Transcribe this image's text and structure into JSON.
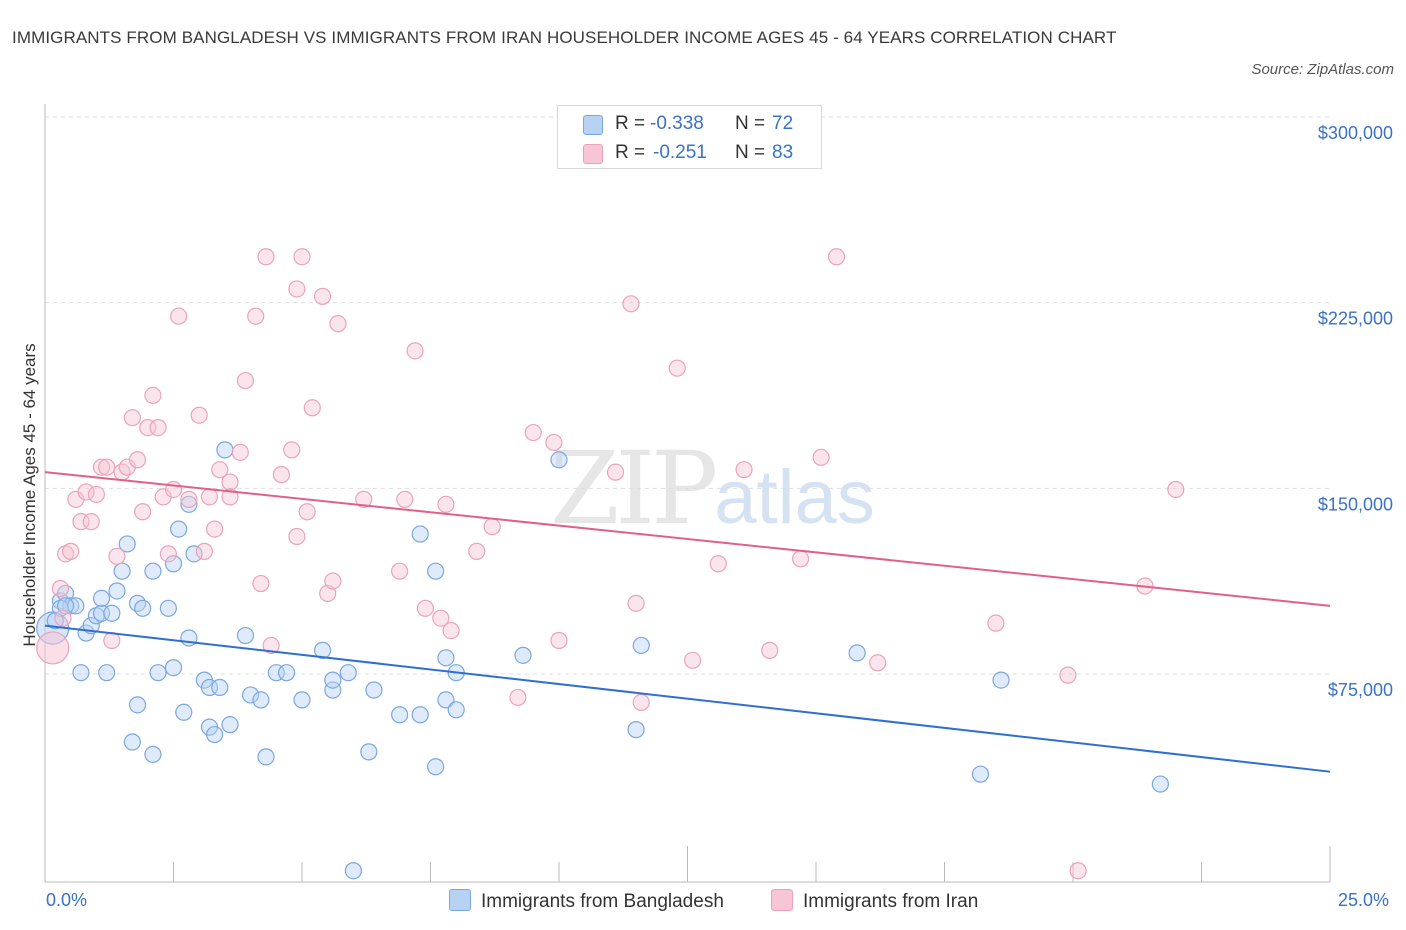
{
  "chart_data": {
    "type": "scatter",
    "title": "IMMIGRANTS FROM BANGLADESH VS IMMIGRANTS FROM IRAN HOUSEHOLDER INCOME AGES 45 - 64 YEARS CORRELATION CHART",
    "source": "Source: ZipAtlas.com",
    "xlabel": "",
    "ylabel": "Householder Income Ages 45 - 64 years",
    "xlim": [
      0,
      25
    ],
    "ylim": [
      0,
      300000
    ],
    "x_tick_labels": [
      "0.0%",
      "25.0%"
    ],
    "y_ticks": [
      75000,
      150000,
      225000,
      300000
    ],
    "y_tick_labels": [
      "$75,000",
      "$150,000",
      "$225,000",
      "$300,000"
    ],
    "grid": true,
    "watermark": {
      "text1": "ZIP",
      "text2": "atlas"
    },
    "legend_stats": [
      {
        "r_label": "R = ",
        "r_value": "-0.338",
        "n_label": "N = ",
        "n_value": "72"
      },
      {
        "r_label": "R = ",
        "r_value": "-0.251",
        "n_label": "N = ",
        "n_value": "83"
      }
    ],
    "series": [
      {
        "name": "Immigrants from Bangladesh",
        "color": "#7aa7e0",
        "fill": "#b8d2f3",
        "line_color": "#2f6fd0",
        "trend": {
          "x": [
            0,
            25
          ],
          "y": [
            101000,
            42000
          ]
        },
        "points": [
          [
            0.15,
            100000
          ],
          [
            0.3,
            111000
          ],
          [
            0.4,
            114000
          ],
          [
            0.5,
            109000
          ],
          [
            0.3,
            108000
          ],
          [
            0.6,
            109000
          ],
          [
            0.8,
            98000
          ],
          [
            0.9,
            101000
          ],
          [
            1.0,
            105000
          ],
          [
            1.1,
            106000
          ],
          [
            1.3,
            106000
          ],
          [
            1.1,
            112000
          ],
          [
            1.4,
            115000
          ],
          [
            1.5,
            123000
          ],
          [
            1.6,
            134000
          ],
          [
            1.8,
            110000
          ],
          [
            1.9,
            108000
          ],
          [
            2.1,
            123000
          ],
          [
            2.4,
            108000
          ],
          [
            2.5,
            126000
          ],
          [
            2.6,
            140000
          ],
          [
            2.8,
            150000
          ],
          [
            2.9,
            130000
          ],
          [
            3.5,
            172000
          ],
          [
            0.7,
            82000
          ],
          [
            1.2,
            82000
          ],
          [
            2.2,
            82000
          ],
          [
            2.5,
            84000
          ],
          [
            2.8,
            96000
          ],
          [
            3.1,
            79000
          ],
          [
            3.2,
            76000
          ],
          [
            3.4,
            76000
          ],
          [
            3.9,
            97000
          ],
          [
            4.0,
            73000
          ],
          [
            4.2,
            71000
          ],
          [
            4.5,
            82000
          ],
          [
            4.7,
            82000
          ],
          [
            5.0,
            71000
          ],
          [
            5.4,
            91000
          ],
          [
            5.6,
            75000
          ],
          [
            5.9,
            82000
          ],
          [
            6.4,
            75000
          ],
          [
            7.3,
            138000
          ],
          [
            7.6,
            123000
          ],
          [
            7.8,
            88000
          ],
          [
            8.0,
            82000
          ],
          [
            9.3,
            89000
          ],
          [
            10.0,
            168000
          ],
          [
            1.8,
            69000
          ],
          [
            2.7,
            66000
          ],
          [
            3.2,
            60000
          ],
          [
            3.3,
            57000
          ],
          [
            3.6,
            61000
          ],
          [
            4.3,
            48000
          ],
          [
            6.3,
            50000
          ],
          [
            6.9,
            65000
          ],
          [
            7.3,
            65000
          ],
          [
            7.6,
            44000
          ],
          [
            7.8,
            71000
          ],
          [
            8.0,
            67000
          ],
          [
            11.5,
            59000
          ],
          [
            11.6,
            93000
          ],
          [
            15.8,
            90000
          ],
          [
            18.6,
            79000
          ],
          [
            18.2,
            41000
          ],
          [
            21.7,
            37000
          ],
          [
            1.7,
            54000
          ],
          [
            2.1,
            49000
          ],
          [
            5.6,
            79000
          ],
          [
            6.0,
            2000
          ],
          [
            0.4,
            109000
          ],
          [
            0.2,
            103000
          ]
        ]
      },
      {
        "name": "Immigrants from Iran",
        "color": "#eaa3bb",
        "fill": "#f7c5d5",
        "line_color": "#e0608a",
        "trend": {
          "x": [
            0,
            25
          ],
          "y": [
            163000,
            109000
          ]
        },
        "points": [
          [
            0.15,
            92000
          ],
          [
            0.3,
            116000
          ],
          [
            0.4,
            130000
          ],
          [
            0.5,
            131000
          ],
          [
            0.6,
            152000
          ],
          [
            0.7,
            143000
          ],
          [
            0.8,
            155000
          ],
          [
            0.9,
            143000
          ],
          [
            1.0,
            154000
          ],
          [
            1.1,
            165000
          ],
          [
            1.2,
            165000
          ],
          [
            1.3,
            95000
          ],
          [
            1.5,
            163000
          ],
          [
            1.6,
            165000
          ],
          [
            1.7,
            185000
          ],
          [
            1.8,
            168000
          ],
          [
            1.9,
            147000
          ],
          [
            2.0,
            181000
          ],
          [
            2.1,
            194000
          ],
          [
            2.2,
            181000
          ],
          [
            2.3,
            153000
          ],
          [
            2.4,
            130000
          ],
          [
            2.5,
            156000
          ],
          [
            2.6,
            226000
          ],
          [
            2.8,
            152000
          ],
          [
            3.0,
            186000
          ],
          [
            3.1,
            131000
          ],
          [
            3.2,
            153000
          ],
          [
            3.3,
            140000
          ],
          [
            3.4,
            164000
          ],
          [
            3.6,
            159000
          ],
          [
            3.6,
            153000
          ],
          [
            3.8,
            171000
          ],
          [
            3.9,
            200000
          ],
          [
            4.1,
            226000
          ],
          [
            4.2,
            118000
          ],
          [
            4.3,
            250000
          ],
          [
            4.4,
            93000
          ],
          [
            4.6,
            162000
          ],
          [
            4.8,
            172000
          ],
          [
            4.9,
            137000
          ],
          [
            4.9,
            237000
          ],
          [
            5.0,
            250000
          ],
          [
            5.1,
            147000
          ],
          [
            5.2,
            189000
          ],
          [
            5.4,
            234000
          ],
          [
            5.5,
            114000
          ],
          [
            5.6,
            119000
          ],
          [
            5.7,
            223000
          ],
          [
            6.2,
            152000
          ],
          [
            6.9,
            123000
          ],
          [
            7.0,
            152000
          ],
          [
            7.2,
            212000
          ],
          [
            7.4,
            108000
          ],
          [
            7.7,
            104000
          ],
          [
            7.8,
            150000
          ],
          [
            7.9,
            99000
          ],
          [
            8.4,
            131000
          ],
          [
            8.7,
            141000
          ],
          [
            9.2,
            72000
          ],
          [
            9.5,
            179000
          ],
          [
            9.9,
            175000
          ],
          [
            10.0,
            95000
          ],
          [
            11.1,
            163000
          ],
          [
            11.4,
            231000
          ],
          [
            11.5,
            110000
          ],
          [
            11.6,
            70000
          ],
          [
            12.3,
            205000
          ],
          [
            12.6,
            87000
          ],
          [
            13.1,
            126000
          ],
          [
            13.6,
            164000
          ],
          [
            14.1,
            91000
          ],
          [
            14.7,
            128000
          ],
          [
            15.1,
            169000
          ],
          [
            15.4,
            250000
          ],
          [
            16.2,
            86000
          ],
          [
            18.5,
            102000
          ],
          [
            19.9,
            81000
          ],
          [
            20.1,
            2000
          ],
          [
            21.4,
            117000
          ],
          [
            22.0,
            156000
          ],
          [
            1.4,
            129000
          ],
          [
            0.35,
            104000
          ]
        ]
      }
    ]
  }
}
